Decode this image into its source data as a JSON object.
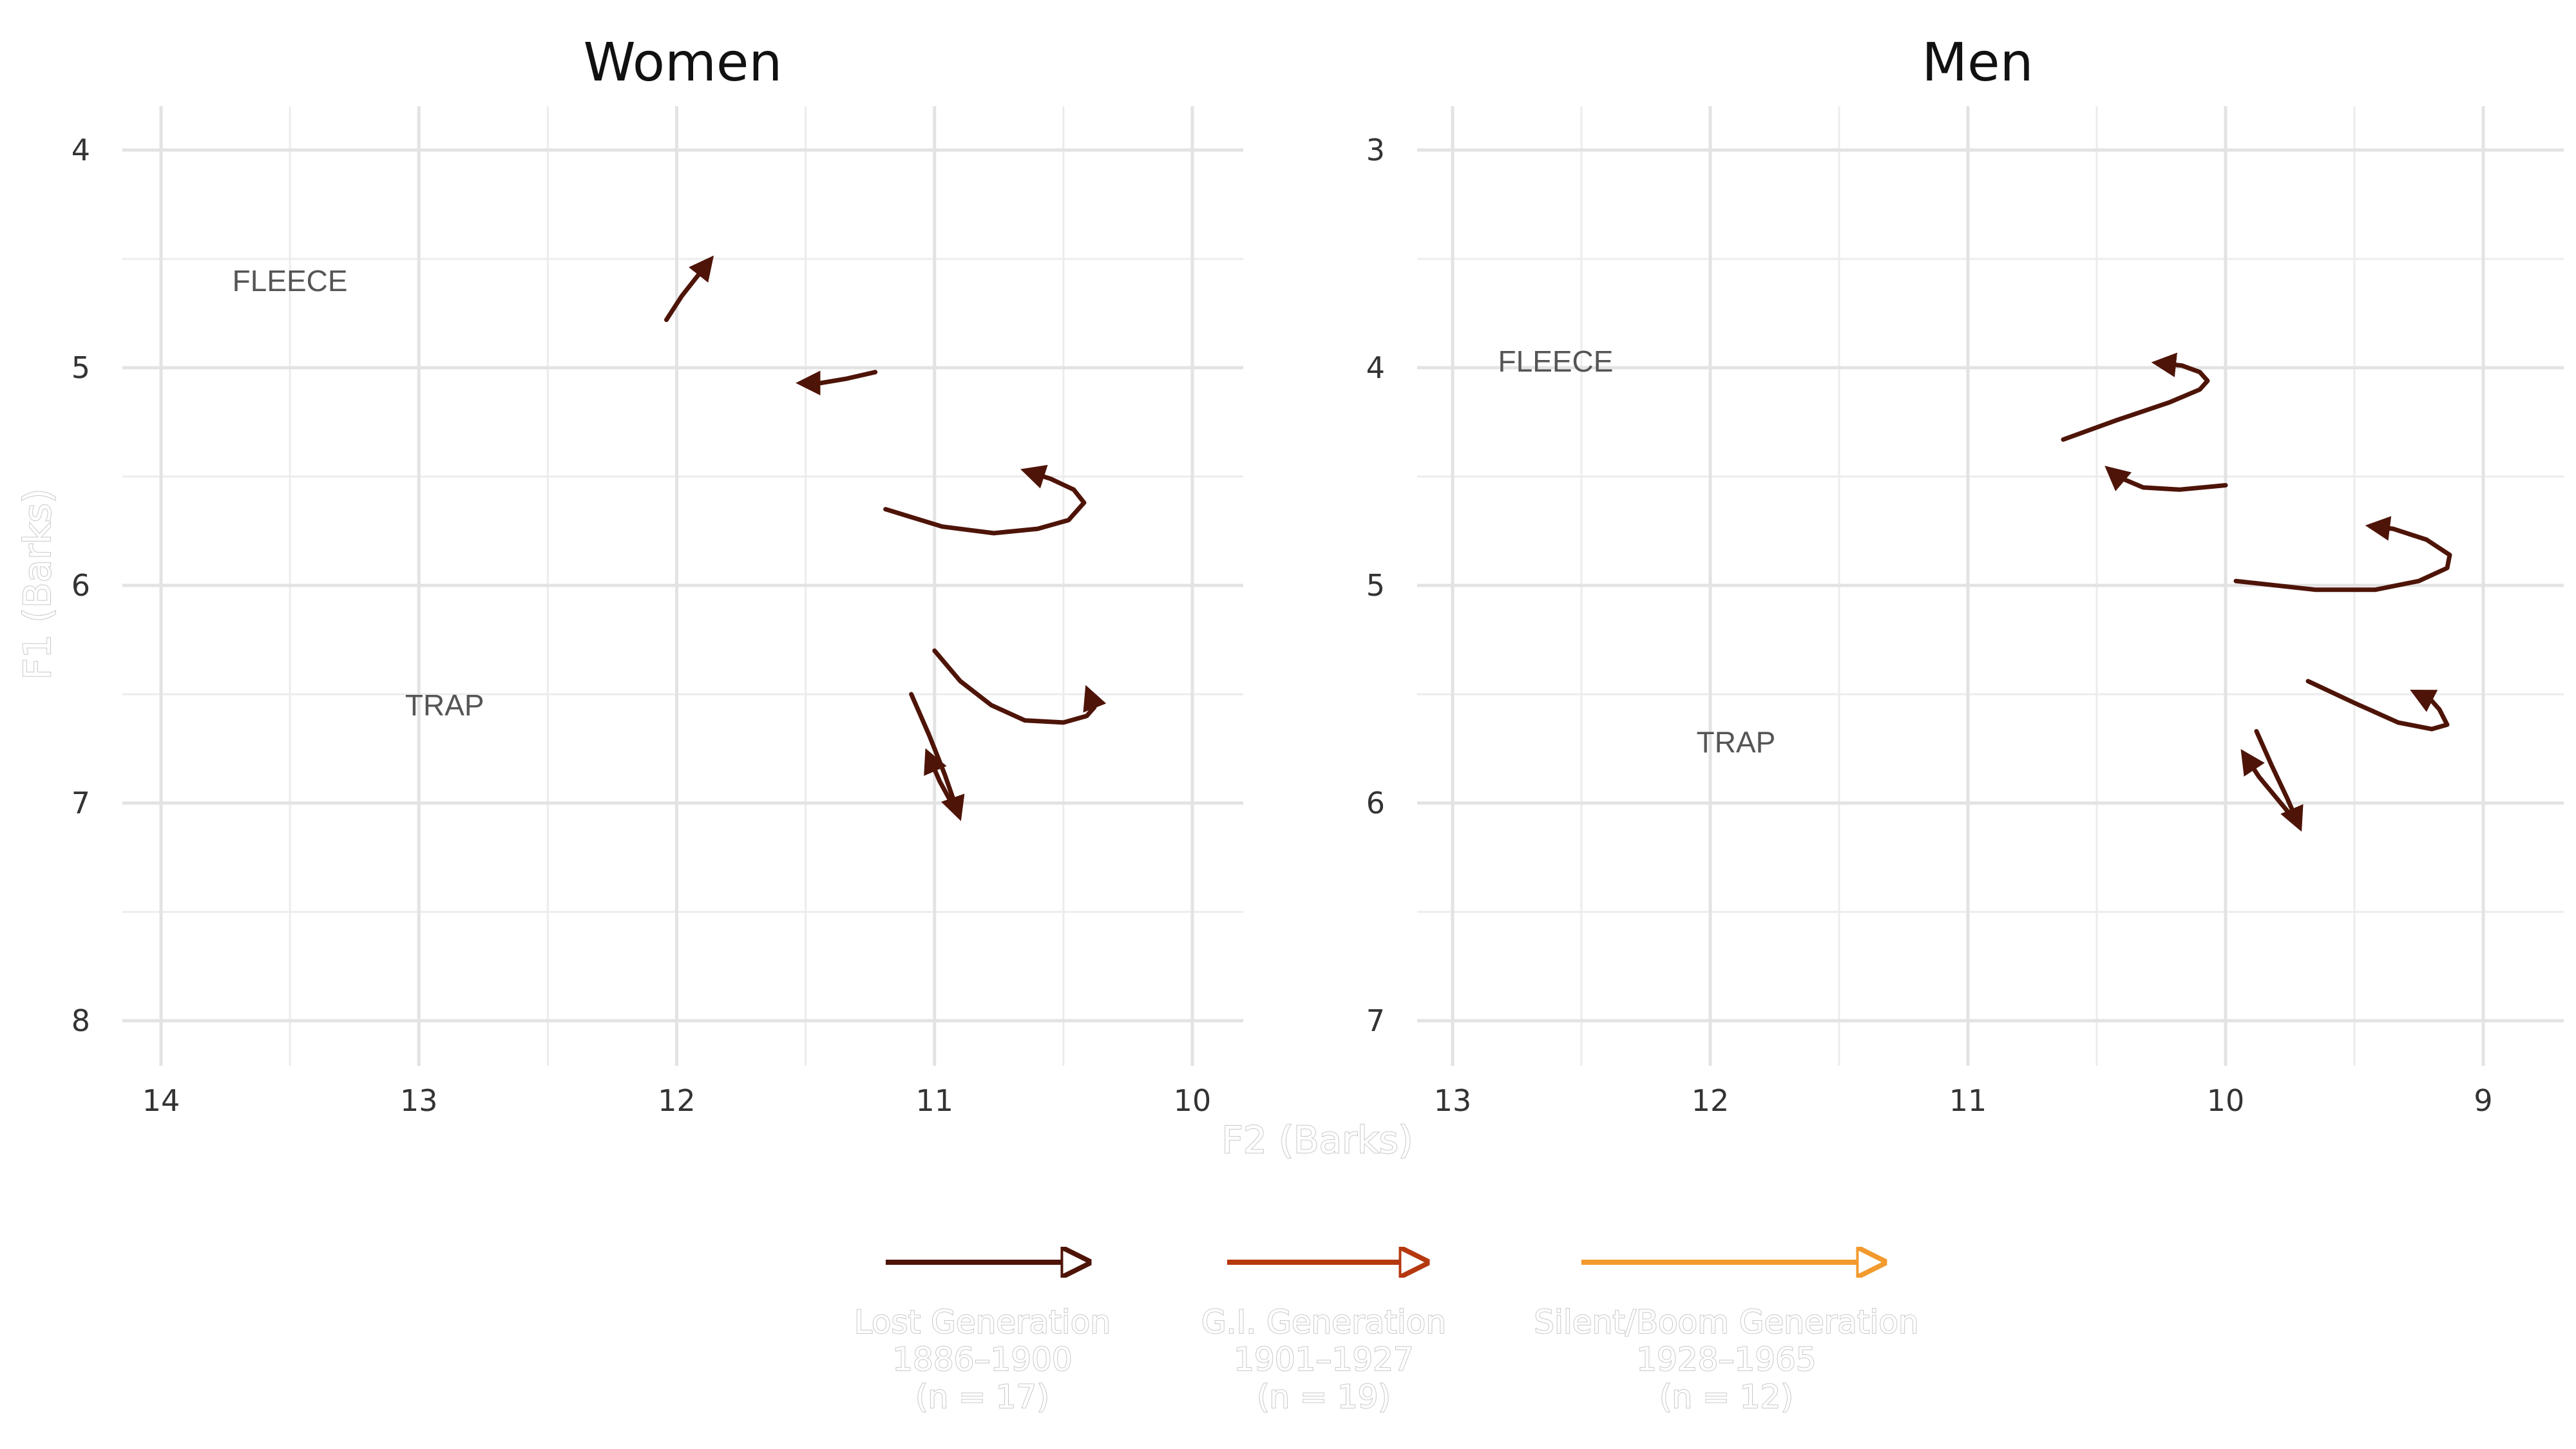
{
  "chart_data": [
    {
      "type": "line",
      "title": "Women",
      "xlabel": "F2 (Barks)",
      "ylabel": "F1 (Barks)",
      "x_reversed": true,
      "y_reversed": true,
      "xlim": [
        14.0,
        10.0
      ],
      "ylim": [
        8.0,
        4.0
      ],
      "x_ticks": [
        14,
        13,
        12,
        11,
        10
      ],
      "y_ticks": [
        4,
        5,
        6,
        7,
        8
      ],
      "grid": true,
      "annotations": [
        {
          "text": "FLEECE",
          "x": 13.5,
          "y": 4.6
        },
        {
          "text": "TRAP",
          "x": 12.9,
          "y": 6.55
        }
      ],
      "series": [
        {
          "generation": "Lost Generation",
          "points": [
            [
              12.04,
              4.78
            ],
            [
              11.98,
              4.67
            ],
            [
              11.92,
              4.58
            ],
            [
              11.88,
              4.52
            ]
          ]
        },
        {
          "generation": "Lost Generation",
          "points": [
            [
              11.23,
              5.02
            ],
            [
              11.34,
              5.05
            ],
            [
              11.44,
              5.07
            ],
            [
              11.5,
              5.07
            ]
          ]
        },
        {
          "generation": "Lost Generation",
          "points": [
            [
              11.19,
              5.65
            ],
            [
              10.97,
              5.73
            ],
            [
              10.77,
              5.76
            ],
            [
              10.6,
              5.74
            ],
            [
              10.48,
              5.7
            ],
            [
              10.42,
              5.62
            ],
            [
              10.46,
              5.56
            ],
            [
              10.55,
              5.51
            ],
            [
              10.63,
              5.48
            ]
          ]
        },
        {
          "generation": "Lost Generation",
          "points": [
            [
              11.0,
              6.3
            ],
            [
              10.9,
              6.44
            ],
            [
              10.78,
              6.55
            ],
            [
              10.65,
              6.62
            ],
            [
              10.5,
              6.63
            ],
            [
              10.41,
              6.6
            ],
            [
              10.38,
              6.56
            ],
            [
              10.4,
              6.5
            ]
          ]
        },
        {
          "generation": "Lost Generation",
          "points": [
            [
              11.09,
              6.5
            ],
            [
              11.02,
              6.69
            ],
            [
              10.96,
              6.87
            ],
            [
              10.91,
              7.04
            ]
          ]
        },
        {
          "generation": "Lost Generation",
          "points": [
            [
              10.92,
              7.03
            ],
            [
              10.98,
              6.9
            ],
            [
              11.02,
              6.79
            ]
          ]
        }
      ]
    },
    {
      "type": "line",
      "title": "Men",
      "xlabel": "F2 (Barks)",
      "ylabel": "F1 (Barks)",
      "x_reversed": true,
      "y_reversed": true,
      "xlim": [
        13.0,
        9.0
      ],
      "ylim": [
        7.0,
        3.0
      ],
      "x_ticks": [
        13,
        12,
        11,
        10,
        9
      ],
      "y_ticks": [
        3,
        4,
        5,
        6,
        7
      ],
      "grid": true,
      "annotations": [
        {
          "text": "FLEECE",
          "x": 12.6,
          "y": 3.97
        },
        {
          "text": "TRAP",
          "x": 11.9,
          "y": 5.72
        }
      ],
      "series": [
        {
          "generation": "Lost Generation",
          "points": [
            [
              10.63,
              4.33
            ],
            [
              10.42,
              4.24
            ],
            [
              10.22,
              4.16
            ],
            [
              10.1,
              4.1
            ],
            [
              10.07,
              4.06
            ],
            [
              10.1,
              4.02
            ],
            [
              10.17,
              3.99
            ],
            [
              10.25,
              3.98
            ]
          ]
        },
        {
          "generation": "Lost Generation",
          "points": [
            [
              10.0,
              4.54
            ],
            [
              10.18,
              4.56
            ],
            [
              10.32,
              4.55
            ],
            [
              10.42,
              4.5
            ],
            [
              10.44,
              4.48
            ]
          ]
        },
        {
          "generation": "Lost Generation",
          "points": [
            [
              9.96,
              4.98
            ],
            [
              9.65,
              5.02
            ],
            [
              9.42,
              5.02
            ],
            [
              9.25,
              4.98
            ],
            [
              9.14,
              4.92
            ],
            [
              9.13,
              4.86
            ],
            [
              9.22,
              4.79
            ],
            [
              9.35,
              4.74
            ],
            [
              9.42,
              4.73
            ]
          ]
        },
        {
          "generation": "Lost Generation",
          "points": [
            [
              9.68,
              5.44
            ],
            [
              9.5,
              5.54
            ],
            [
              9.33,
              5.63
            ],
            [
              9.2,
              5.66
            ],
            [
              9.14,
              5.64
            ],
            [
              9.17,
              5.57
            ],
            [
              9.2,
              5.53
            ],
            [
              9.25,
              5.5
            ]
          ]
        },
        {
          "generation": "Lost Generation",
          "points": [
            [
              9.88,
              5.67
            ],
            [
              9.82,
              5.83
            ],
            [
              9.76,
              5.98
            ],
            [
              9.72,
              6.09
            ]
          ]
        },
        {
          "generation": "Lost Generation",
          "points": [
            [
              9.73,
              6.08
            ],
            [
              9.8,
              5.98
            ],
            [
              9.87,
              5.88
            ],
            [
              9.92,
              5.79
            ]
          ]
        }
      ]
    }
  ],
  "legend": [
    {
      "name": "Lost Generation",
      "years": "1886–1900",
      "n": "(n = 17)",
      "color": "#4e1408"
    },
    {
      "name": "G.I. Generation",
      "years": "1901–1927",
      "n": "(n = 19)",
      "color": "#b5380f"
    },
    {
      "name": "Silent/Boom Generation",
      "years": "1928–1965",
      "n": "(n = 12)",
      "color": "#f29a2e"
    }
  ],
  "shared_axes": {
    "xlabel": "F2 (Barks)",
    "ylabel": "F1 (Barks)"
  }
}
